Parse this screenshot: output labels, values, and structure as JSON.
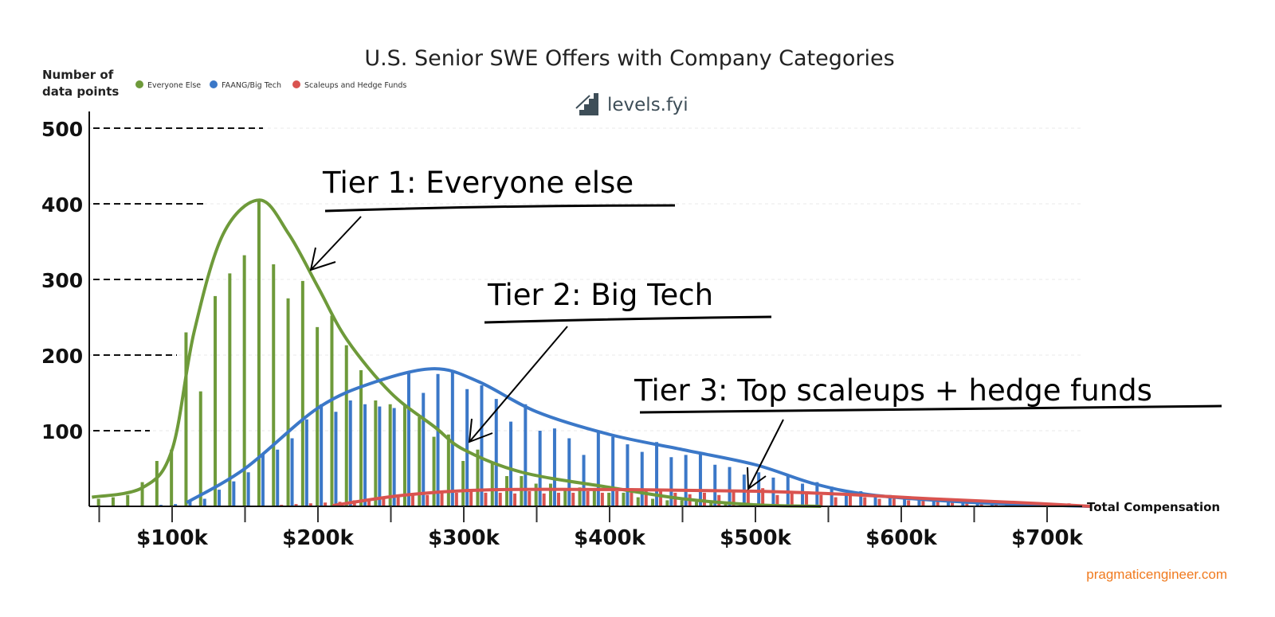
{
  "chart_data": {
    "type": "bar",
    "title": "U.S. Senior SWE Offers with Company Categories",
    "ylabel": "Number of data points",
    "xlabel": "Total Compensation",
    "ylim": [
      0,
      500
    ],
    "xlim_k": [
      45,
      730
    ],
    "bin_width_k": 10,
    "grid": true,
    "legend_position": "top-left",
    "y_ticks": [
      100,
      200,
      300,
      400,
      500
    ],
    "y_tick_labels": [
      "100",
      "200",
      "300",
      "400",
      "500"
    ],
    "x_ticks_k": [
      100,
      200,
      300,
      400,
      500,
      600,
      700
    ],
    "x_tick_labels": [
      "$100k",
      "$200k",
      "$300k",
      "$400k",
      "$500k",
      "$600k",
      "$700k"
    ],
    "x_minor_ticks_k": [
      50,
      150,
      250,
      350,
      450,
      550,
      650
    ],
    "legend": [
      {
        "name": "Everyone Else",
        "color": "#6e9a3a"
      },
      {
        "name": "FAANG/Big Tech",
        "color": "#3b78c8"
      },
      {
        "name": "Scaleups and Hedge Funds",
        "color": "#d9534f"
      }
    ],
    "bins_start_k": 55,
    "series": [
      {
        "name": "Everyone Else",
        "color": "#6e9a3a",
        "values": [
          10,
          12,
          15,
          32,
          60,
          75,
          230,
          152,
          278,
          308,
          332,
          405,
          320,
          275,
          298,
          237,
          252,
          213,
          180,
          140,
          135,
          135,
          118,
          92,
          95,
          60,
          75,
          58,
          40,
          40,
          30,
          30,
          22,
          25,
          22,
          18,
          18,
          12,
          10,
          8,
          8,
          6,
          5,
          4,
          3,
          3,
          2,
          2,
          1,
          1,
          1,
          0,
          0,
          0,
          0,
          0,
          0,
          0,
          0,
          0,
          0,
          0,
          0,
          0,
          0,
          0,
          0,
          0,
          0
        ],
        "smooth_curve": [
          [
            45,
            12
          ],
          [
            80,
            25
          ],
          [
            100,
            75
          ],
          [
            115,
            230
          ],
          [
            135,
            360
          ],
          [
            160,
            405
          ],
          [
            180,
            360
          ],
          [
            200,
            290
          ],
          [
            220,
            220
          ],
          [
            250,
            150
          ],
          [
            280,
            105
          ],
          [
            300,
            75
          ],
          [
            340,
            45
          ],
          [
            400,
            25
          ],
          [
            450,
            10
          ],
          [
            500,
            2
          ],
          [
            545,
            0
          ]
        ]
      },
      {
        "name": "FAANG/Big Tech",
        "color": "#3b78c8",
        "values": [
          0,
          0,
          0,
          0,
          2,
          3,
          8,
          10,
          22,
          33,
          45,
          70,
          75,
          90,
          115,
          135,
          125,
          140,
          135,
          132,
          130,
          178,
          150,
          175,
          178,
          155,
          160,
          142,
          112,
          135,
          100,
          103,
          90,
          68,
          100,
          92,
          82,
          72,
          85,
          65,
          68,
          70,
          55,
          52,
          42,
          45,
          38,
          40,
          30,
          32,
          26,
          16,
          20,
          13,
          15,
          10,
          8,
          8,
          7,
          6,
          5,
          4,
          4,
          3,
          2,
          2,
          1,
          1,
          0
        ],
        "smooth_curve": [
          [
            110,
            5
          ],
          [
            150,
            50
          ],
          [
            200,
            130
          ],
          [
            240,
            165
          ],
          [
            280,
            182
          ],
          [
            310,
            165
          ],
          [
            350,
            125
          ],
          [
            400,
            95
          ],
          [
            450,
            75
          ],
          [
            500,
            55
          ],
          [
            540,
            30
          ],
          [
            580,
            15
          ],
          [
            650,
            5
          ],
          [
            730,
            0
          ]
        ]
      },
      {
        "name": "Scaleups and Hedge Funds",
        "color": "#d9534f",
        "values": [
          0,
          0,
          0,
          0,
          0,
          0,
          0,
          0,
          0,
          0,
          0,
          1,
          2,
          3,
          4,
          5,
          6,
          8,
          10,
          12,
          14,
          15,
          15,
          18,
          18,
          20,
          18,
          18,
          17,
          20,
          17,
          18,
          18,
          20,
          18,
          20,
          24,
          20,
          20,
          18,
          16,
          18,
          15,
          20,
          22,
          24,
          15,
          18,
          18,
          15,
          12,
          14,
          12,
          10,
          10,
          8,
          10,
          8,
          7,
          8,
          6,
          5,
          4,
          5,
          3,
          3,
          4,
          2,
          1
        ],
        "smooth_curve": [
          [
            210,
            1
          ],
          [
            260,
            15
          ],
          [
            320,
            22
          ],
          [
            420,
            22
          ],
          [
            500,
            20
          ],
          [
            560,
            16
          ],
          [
            620,
            10
          ],
          [
            680,
            5
          ],
          [
            730,
            0
          ]
        ]
      }
    ]
  },
  "header": {
    "title": "U.S. Senior SWE Offers with Company Categories",
    "ylabel_line1": "Number of",
    "ylabel_line2": "data points",
    "brand": "levels.fyi"
  },
  "legend": {
    "items": [
      {
        "label": "Everyone Else",
        "color": "#6e9a3a"
      },
      {
        "label": "FAANG/Big Tech",
        "color": "#3b78c8"
      },
      {
        "label": "Scaleups and Hedge Funds",
        "color": "#d9534f"
      }
    ]
  },
  "axes": {
    "y_ticks": [
      "500",
      "400",
      "300",
      "200",
      "100"
    ],
    "x_ticks": [
      "$100k",
      "$200k",
      "$300k",
      "$400k",
      "$500k",
      "$600k",
      "$700k"
    ],
    "x_label": "Total Compensation"
  },
  "annotations": [
    {
      "text": "Tier 1: Everyone else"
    },
    {
      "text": "Tier 2: Big Tech"
    },
    {
      "text": "Tier 3: Top scaleups + hedge funds"
    }
  ],
  "footer": {
    "watermark": "pragmaticengineer.com"
  }
}
